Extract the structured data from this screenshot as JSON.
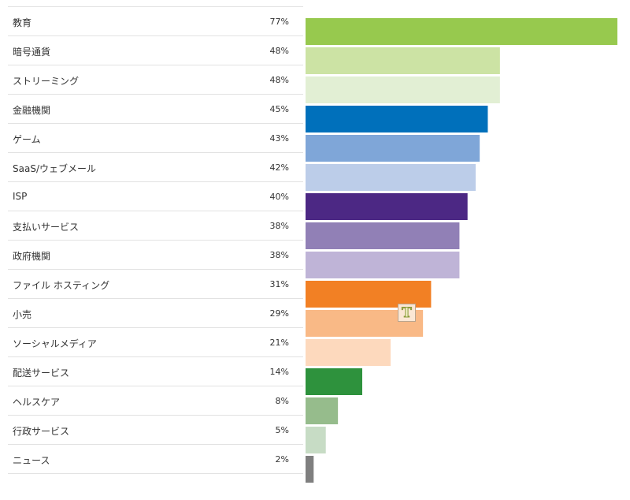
{
  "chart_data": {
    "type": "bar",
    "orientation": "horizontal",
    "title": "",
    "xlabel": "",
    "ylabel": "",
    "xlim": [
      0,
      77
    ],
    "grid": false,
    "categories": [
      "教育",
      "暗号通貨",
      "ストリーミング",
      "金融機関",
      "ゲーム",
      "SaaS/ウェブメール",
      "ISP",
      "支払いサービス",
      "政府機関",
      "ファイル ホスティング",
      "小売",
      "ソーシャルメディア",
      "配送サービス",
      "ヘルスケア",
      "行政サービス",
      "ニュース"
    ],
    "values": [
      77,
      48,
      48,
      45,
      43,
      42,
      40,
      38,
      38,
      31,
      29,
      21,
      14,
      8,
      5,
      2
    ],
    "value_labels": [
      "77%",
      "48%",
      "48%",
      "45%",
      "43%",
      "42%",
      "40%",
      "38%",
      "38%",
      "31%",
      "29%",
      "21%",
      "14%",
      "8%",
      "5%",
      "2%"
    ],
    "colors": [
      "#97c94e",
      "#cce3a4",
      "#e2efd4",
      "#0070bb",
      "#7fa6d8",
      "#bccde9",
      "#4c2884",
      "#9180b6",
      "#bfb4d7",
      "#f28024",
      "#f9b986",
      "#fdd9bd",
      "#2e923d",
      "#96bc8c",
      "#c7dcc5",
      "#7f7f7f"
    ]
  },
  "overlay": {
    "icon": "text-cursor-icon",
    "glyph": "T"
  }
}
